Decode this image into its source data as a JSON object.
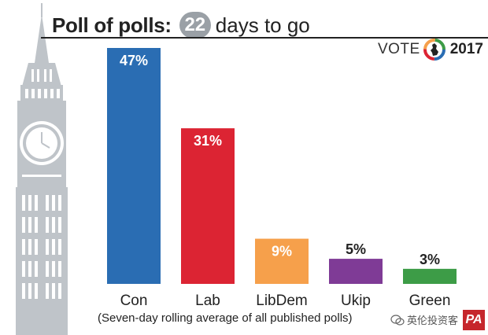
{
  "header": {
    "title_bold": "Poll of polls:",
    "days_number": "22",
    "title_rest": "days to go"
  },
  "logo": {
    "vote_word": "VOTE",
    "year": "2017"
  },
  "chart_data": {
    "type": "bar",
    "title": "Poll of polls: 22 days to go",
    "categories": [
      "Con",
      "Lab",
      "LibDem",
      "Ukip",
      "Green"
    ],
    "values": [
      47,
      31,
      9,
      5,
      3
    ],
    "value_labels": [
      "47%",
      "31%",
      "9%",
      "5%",
      "3%"
    ],
    "colors": [
      "#2a6db3",
      "#dc2433",
      "#f6a04b",
      "#7f3b96",
      "#3d9c47"
    ],
    "ylim": [
      0,
      47
    ],
    "grid": false,
    "caption": "(Seven-day rolling average of all published polls)"
  },
  "watermark": {
    "text": "英伦投资客"
  },
  "credit": {
    "text": "PA"
  }
}
